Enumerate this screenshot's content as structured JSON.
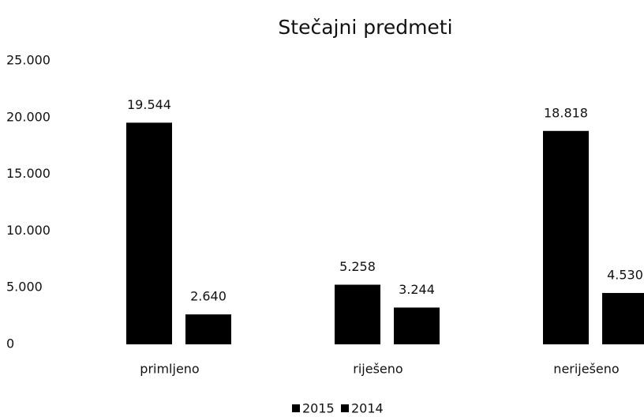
{
  "chart_data": {
    "type": "bar",
    "title": "Stečajni predmeti",
    "categories": [
      "primljeno",
      "riješeno",
      "neriješeno"
    ],
    "series": [
      {
        "name": "2015",
        "color": "#000000",
        "values": [
          19544,
          5258,
          18818
        ],
        "value_labels": [
          "19.544",
          "5.258",
          "18.818"
        ]
      },
      {
        "name": "2014",
        "color": "#000000",
        "values": [
          2640,
          3244,
          4530
        ],
        "value_labels": [
          "2.640",
          "3.244",
          "4.530"
        ]
      }
    ],
    "ylim": [
      0,
      25000
    ],
    "yticks": [
      0,
      {
        "value": 5000,
        "label": "5.000"
      },
      {
        "value": 10000,
        "label": "10.000"
      },
      {
        "value": 15000,
        "label": "15.000"
      },
      {
        "value": 20000,
        "label": "20.000"
      },
      {
        "value": 25000,
        "label": "25.000"
      }
    ],
    "grid": false,
    "legend": "bottom"
  }
}
